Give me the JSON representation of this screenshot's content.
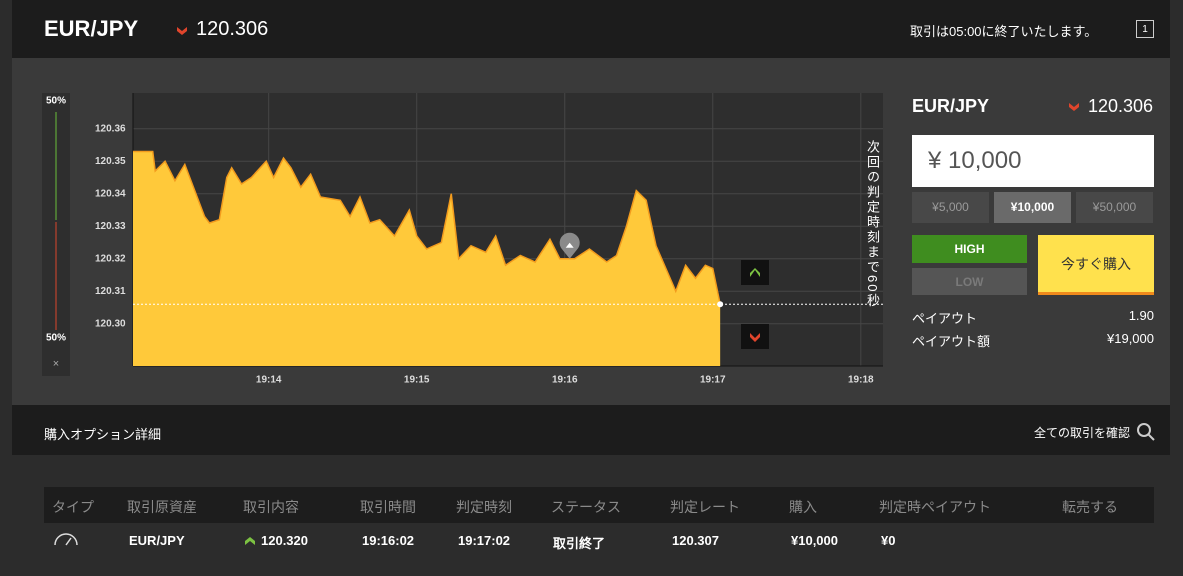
{
  "header": {
    "pair": "EUR/JPY",
    "rate": "120.306",
    "notice": "取引は05:00に終了いたします。",
    "icon": "1"
  },
  "sidebar": {
    "high_pct": "50%",
    "low_pct": "50%",
    "close": "×"
  },
  "chart_data": {
    "type": "area",
    "x": [
      "19:13:05",
      "19:13:13",
      "19:13:14",
      "19:13:18",
      "19:13:22",
      "19:13:26",
      "19:13:30",
      "19:13:34",
      "19:13:36",
      "19:13:40",
      "19:13:43",
      "19:13:45",
      "19:13:49",
      "19:13:53",
      "19:13:59",
      "19:14:02",
      "19:14:06",
      "19:14:09",
      "19:14:13",
      "19:14:17",
      "19:14:21",
      "19:14:29",
      "19:14:33",
      "19:14:37",
      "19:14:41",
      "19:14:45",
      "19:14:51",
      "19:14:57",
      "19:15:00",
      "19:15:04",
      "19:15:10",
      "19:15:14",
      "19:15:17",
      "19:15:22",
      "19:15:28",
      "19:15:32",
      "19:15:36",
      "19:15:42",
      "19:15:48",
      "19:15:54",
      "19:15:58",
      "19:16:04",
      "19:16:10",
      "19:16:17",
      "19:16:21",
      "19:16:25",
      "19:16:29",
      "19:16:33",
      "19:16:37",
      "19:16:41",
      "19:16:45",
      "19:16:49",
      "19:16:53",
      "19:16:57",
      "19:17:00",
      "19:17:03"
    ],
    "values": [
      120.353,
      120.353,
      120.347,
      120.35,
      120.344,
      120.349,
      120.341,
      120.333,
      120.331,
      120.332,
      120.345,
      120.348,
      120.343,
      120.345,
      120.35,
      120.345,
      120.351,
      120.348,
      120.342,
      120.346,
      120.339,
      120.338,
      120.333,
      120.339,
      120.331,
      120.332,
      120.327,
      120.335,
      120.327,
      120.323,
      120.325,
      120.34,
      120.32,
      120.324,
      120.322,
      120.327,
      120.318,
      120.321,
      120.319,
      120.326,
      120.32,
      120.32,
      120.323,
      120.319,
      120.321,
      120.33,
      120.341,
      120.338,
      120.324,
      120.317,
      120.31,
      120.318,
      120.314,
      120.318,
      120.317,
      120.306
    ],
    "color": "#ffc93a",
    "xlim": [
      "19:13:05",
      "19:18:09"
    ],
    "ylim": [
      120.287,
      120.371
    ],
    "xticks": [
      "19:14",
      "19:15",
      "19:16",
      "19:17",
      "19:18"
    ],
    "yticks": [
      {
        "value": 120.3,
        "label": "120.30"
      },
      120.31,
      120.32,
      120.33,
      120.34,
      120.35,
      120.36
    ],
    "grid": true,
    "annotation": "次回の判定時刻まで60秒"
  },
  "panel": {
    "pair": "EUR/JPY",
    "rate": "120.306",
    "amount": "¥ 10,000",
    "presets": [
      "¥5,000",
      "¥10,000",
      "¥50,000"
    ],
    "high": "HIGH",
    "low": "LOW",
    "buy": "今すぐ購入",
    "payout_label": "ペイアウト",
    "payout": "1.90",
    "payout_amount_label": "ペイアウト額",
    "payout_amount": "¥19,000"
  },
  "details": {
    "title": "購入オプション詳細",
    "link": "全ての取引を確認",
    "table": {
      "headers": [
        "タイプ",
        "取引原資産",
        "取引内容",
        "取引時間",
        "判定時刻",
        "ステータス",
        "判定レート",
        "購入",
        "判定時ペイアウト",
        "転売する"
      ],
      "rows": [
        [
          "EUR/JPY",
          "120.320",
          "19:16:02",
          "19:17:02",
          "取引終了",
          "120.307",
          "¥10,000",
          "¥0"
        ]
      ]
    }
  }
}
